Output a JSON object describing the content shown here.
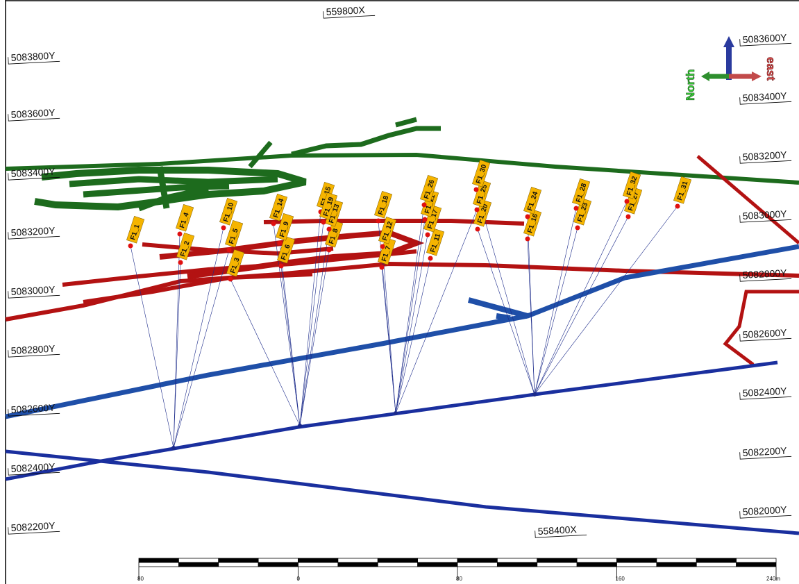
{
  "view": {
    "grid_labels_left": [
      "5083800Y",
      "5083600Y",
      "5083400Y",
      "5083200Y",
      "5083000Y",
      "5082800Y",
      "5082600Y",
      "5082400Y",
      "5082200Y"
    ],
    "grid_labels_right": [
      "5083600Y",
      "5083400Y",
      "5083200Y",
      "5083000Y",
      "5082800Y",
      "5082600Y",
      "5082400Y",
      "5082200Y",
      "5082000Y"
    ],
    "grid_labels_x": [
      "559800X",
      "558400X"
    ],
    "compass": {
      "north": "North",
      "east": "east"
    },
    "scale_bar": [
      "80",
      "0",
      "80",
      "160",
      "240m"
    ],
    "stations": [
      "F1_1",
      "F1_2",
      "F1_3",
      "F1_4",
      "F1_5",
      "F1_6",
      "F1_7",
      "F1_8",
      "F1_9",
      "F1_10",
      "F1_11",
      "F1_12",
      "F1_13",
      "F1_14",
      "F1_15",
      "F1_16",
      "F1_17",
      "F1_18",
      "F1_19",
      "F1_20",
      "F1_21",
      "F1_23",
      "F1_24",
      "F1_25",
      "F1_26",
      "F1_27",
      "F1_28",
      "F1_30",
      "F1_31",
      "F1_32"
    ]
  }
}
